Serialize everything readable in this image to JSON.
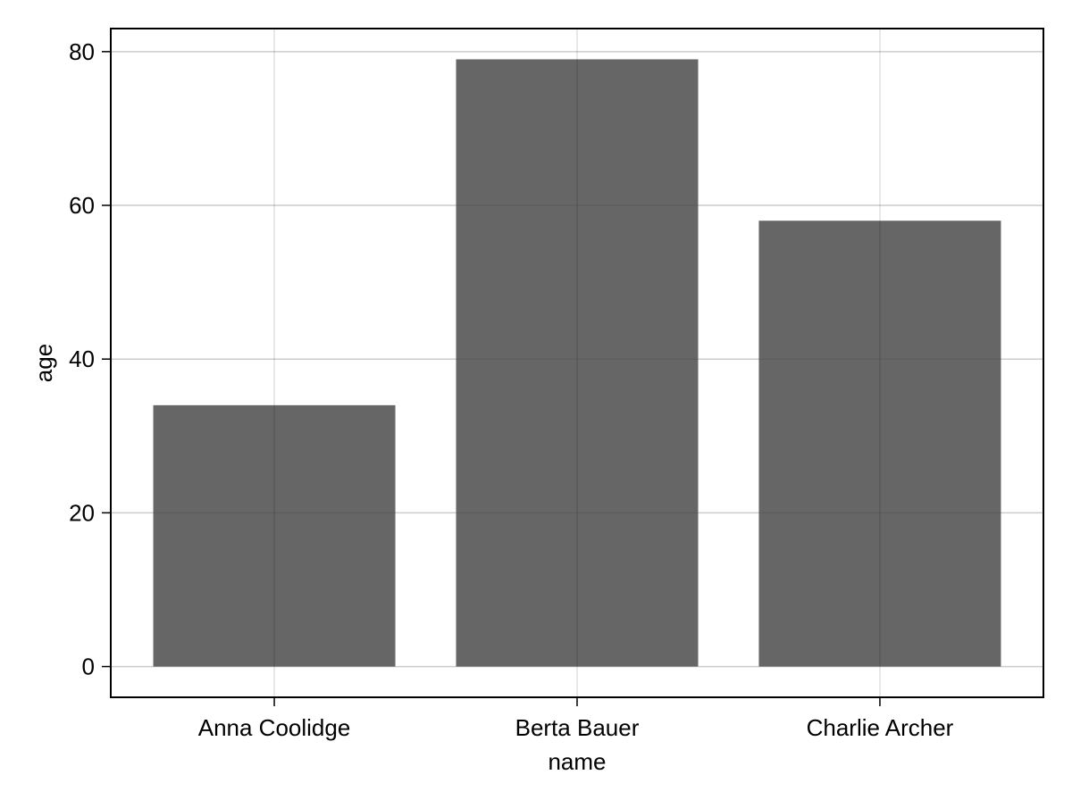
{
  "chart_data": {
    "type": "bar",
    "categories": [
      "Anna Coolidge",
      "Berta Bauer",
      "Charlie Archer"
    ],
    "values": [
      34,
      79,
      58
    ],
    "xlabel": "name",
    "ylabel": "age",
    "ylim": [
      -4,
      83
    ],
    "yticks": [
      0,
      20,
      40,
      60,
      80
    ],
    "grid": true,
    "legend": "none",
    "bar_color": "#666666",
    "grid_color": "#dedede",
    "axis_color": "#000000"
  }
}
